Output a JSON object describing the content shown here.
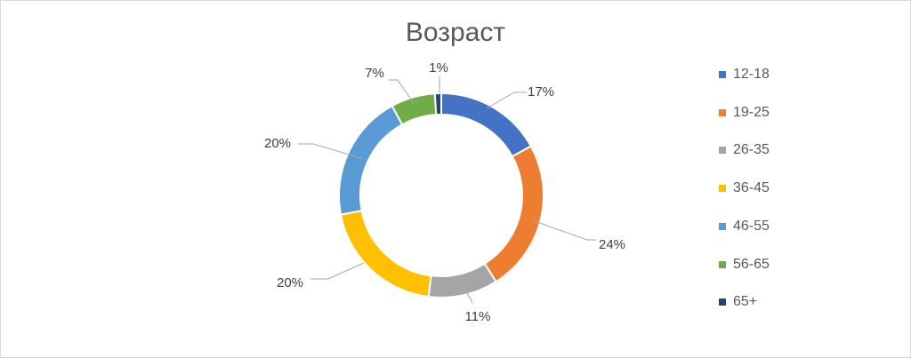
{
  "chart_data": {
    "type": "pie",
    "style": "donut",
    "title": "Возраст",
    "categories": [
      "12-18",
      "19-25",
      "26-35",
      "36-45",
      "46-55",
      "56-65",
      "65+"
    ],
    "values": [
      17,
      24,
      11,
      20,
      20,
      7,
      1
    ],
    "labels": [
      "17%",
      "24%",
      "11%",
      "20%",
      "20%",
      "7%",
      "1%"
    ],
    "colors": [
      "#4472C4",
      "#ED7D31",
      "#A5A5A5",
      "#FFC000",
      "#5B9BD5",
      "#70AD47",
      "#264478"
    ],
    "legend_position": "right"
  }
}
